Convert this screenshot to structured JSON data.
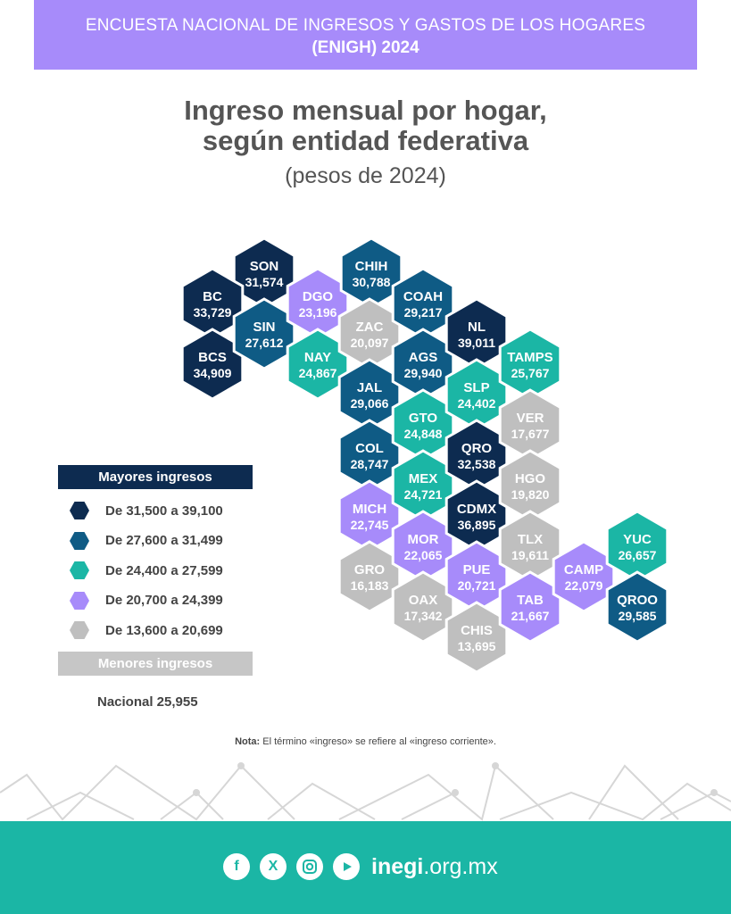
{
  "header": {
    "line1": "ENCUESTA NACIONAL DE INGRESOS Y GASTOS DE LOS HOGARES",
    "line2": "(ENIGH) 2024"
  },
  "chart_data": {
    "type": "hex-tile-map",
    "title_line1": "Ingreso mensual por hogar,",
    "title_line2": "según entidad federativa",
    "subtitle": "(pesos de 2024)",
    "colors": {
      "c1": "#0d2b50",
      "c2": "#0f5b85",
      "c3": "#1bb6a5",
      "c4": "#a78bfa",
      "c5": "#bfbfbf"
    },
    "states": [
      {
        "abbr": "SON",
        "value": "31,574",
        "cls": "c1"
      },
      {
        "abbr": "BC",
        "value": "33,729",
        "cls": "c1"
      },
      {
        "abbr": "BCS",
        "value": "34,909",
        "cls": "c1"
      },
      {
        "abbr": "SIN",
        "value": "27,612",
        "cls": "c2"
      },
      {
        "abbr": "DGO",
        "value": "23,196",
        "cls": "c4"
      },
      {
        "abbr": "NAY",
        "value": "24,867",
        "cls": "c3"
      },
      {
        "abbr": "CHIH",
        "value": "30,788",
        "cls": "c2"
      },
      {
        "abbr": "ZAC",
        "value": "20,097",
        "cls": "c5"
      },
      {
        "abbr": "JAL",
        "value": "29,066",
        "cls": "c2"
      },
      {
        "abbr": "COL",
        "value": "28,747",
        "cls": "c2"
      },
      {
        "abbr": "MICH",
        "value": "22,745",
        "cls": "c4"
      },
      {
        "abbr": "GRO",
        "value": "16,183",
        "cls": "c5"
      },
      {
        "abbr": "COAH",
        "value": "29,217",
        "cls": "c2"
      },
      {
        "abbr": "AGS",
        "value": "29,940",
        "cls": "c2"
      },
      {
        "abbr": "GTO",
        "value": "24,848",
        "cls": "c3"
      },
      {
        "abbr": "MEX",
        "value": "24,721",
        "cls": "c3"
      },
      {
        "abbr": "MOR",
        "value": "22,065",
        "cls": "c4"
      },
      {
        "abbr": "OAX",
        "value": "17,342",
        "cls": "c5"
      },
      {
        "abbr": "NL",
        "value": "39,011",
        "cls": "c1"
      },
      {
        "abbr": "SLP",
        "value": "24,402",
        "cls": "c3"
      },
      {
        "abbr": "QRO",
        "value": "32,538",
        "cls": "c1"
      },
      {
        "abbr": "CDMX",
        "value": "36,895",
        "cls": "c1"
      },
      {
        "abbr": "PUE",
        "value": "20,721",
        "cls": "c4"
      },
      {
        "abbr": "CHIS",
        "value": "13,695",
        "cls": "c5"
      },
      {
        "abbr": "TAMPS",
        "value": "25,767",
        "cls": "c3"
      },
      {
        "abbr": "VER",
        "value": "17,677",
        "cls": "c5"
      },
      {
        "abbr": "HGO",
        "value": "19,820",
        "cls": "c5"
      },
      {
        "abbr": "TLX",
        "value": "19,611",
        "cls": "c5"
      },
      {
        "abbr": "TAB",
        "value": "21,667",
        "cls": "c4"
      },
      {
        "abbr": "CAMP",
        "value": "22,079",
        "cls": "c4"
      },
      {
        "abbr": "YUC",
        "value": "26,657",
        "cls": "c3"
      },
      {
        "abbr": "QROO",
        "value": "29,585",
        "cls": "c2"
      }
    ],
    "legend": {
      "top_label": "Mayores ingresos",
      "bottom_label": "Menores ingresos",
      "ranges": [
        {
          "label": "De 31,500 a 39,100",
          "cls": "c1"
        },
        {
          "label": "De 27,600 a 31,499",
          "cls": "c2"
        },
        {
          "label": "De 24,400 a 27,599",
          "cls": "c3"
        },
        {
          "label": "De 20,700 a 24,399",
          "cls": "c4"
        },
        {
          "label": "De 13,600 a 20,699",
          "cls": "c5"
        }
      ]
    },
    "nacional": "Nacional 25,955"
  },
  "note": {
    "bold": "Nota:",
    "text": " El término «ingreso» se refiere al «ingreso corriente»."
  },
  "footer": {
    "social_icons": [
      "facebook-icon",
      "x-icon",
      "instagram-icon",
      "youtube-icon"
    ],
    "site_bold": "inegi",
    "site_rest": ".org.mx"
  }
}
